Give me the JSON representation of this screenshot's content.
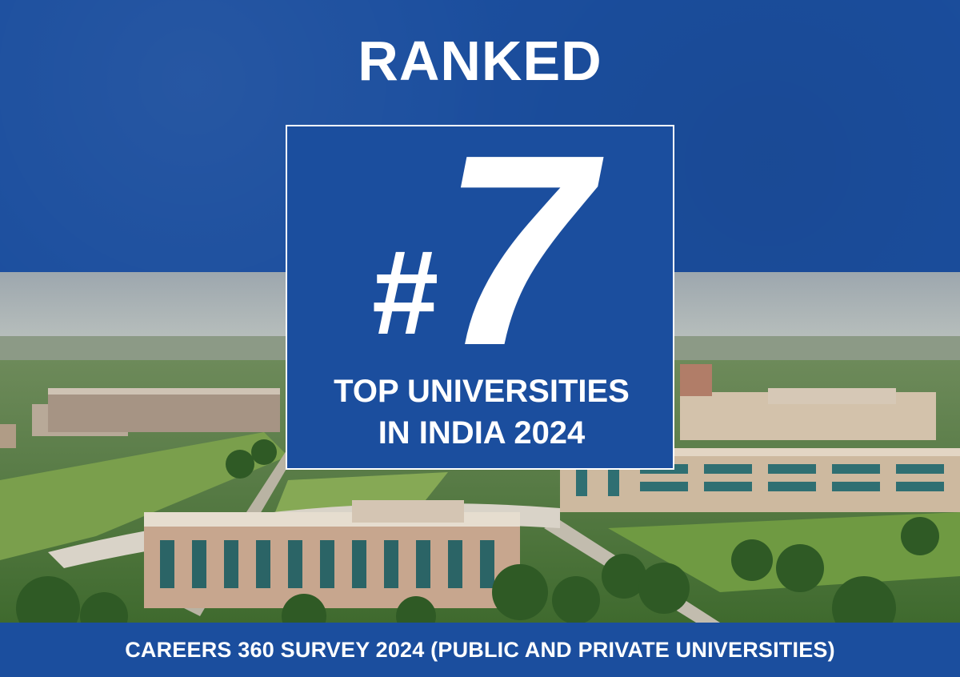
{
  "header": {
    "ranked_label": "RANKED"
  },
  "rank_box": {
    "hash_symbol": "#",
    "rank_value": "7",
    "caption_line1": "TOP UNIVERSITIES",
    "caption_line2": "IN INDIA 2024"
  },
  "footer": {
    "survey_text": "CAREERS 360 SURVEY 2024 (PUBLIC AND PRIVATE UNIVERSITIES)"
  },
  "colors": {
    "brand_blue": "#1b4e9e",
    "text_white": "#ffffff"
  }
}
